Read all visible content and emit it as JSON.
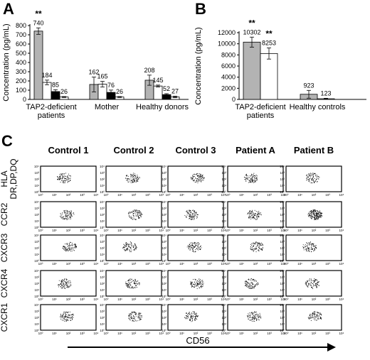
{
  "panel_letters": {
    "a": "A",
    "b": "B",
    "c": "C"
  },
  "chart_data": [
    {
      "panel": "A",
      "type": "bar",
      "ylabel": "Concentration (pg/mL)",
      "ylim": [
        0,
        800
      ],
      "yticks": [
        0,
        100,
        200,
        300,
        400,
        500,
        600,
        700,
        800
      ],
      "categories": [
        [
          "TAP2-deficient",
          "patients"
        ],
        [
          "Mother"
        ],
        [
          "Healthy donors"
        ]
      ],
      "series": [
        {
          "color": "#b3b3b3",
          "values": [
            740,
            162,
            208
          ],
          "errors": [
            35,
            80,
            55
          ]
        },
        {
          "color": "#ffffff",
          "values": [
            184,
            165,
            145
          ],
          "errors": [
            25,
            30,
            10
          ]
        },
        {
          "color": "#000000",
          "values": [
            85,
            76,
            52
          ],
          "errors": [
            20,
            25,
            10
          ]
        },
        {
          "color": "#ffffff",
          "values": [
            26,
            26,
            27
          ],
          "errors": [
            5,
            5,
            8
          ]
        }
      ],
      "annotations": [
        {
          "category": 0,
          "text": "**"
        }
      ]
    },
    {
      "panel": "B",
      "type": "bar",
      "ylabel": "Concentration (pg/mL)",
      "ylim": [
        0,
        12000
      ],
      "yticks": [
        0,
        2000,
        4000,
        6000,
        8000,
        10000,
        12000
      ],
      "categories": [
        [
          "TAP2-deficient",
          "patients"
        ],
        [
          "Healthy controls"
        ]
      ],
      "series": [
        {
          "color": "#b3b3b3",
          "values": [
            10302,
            923
          ],
          "errors": [
            900,
            700
          ]
        },
        {
          "color": "#ffffff",
          "values": [
            8253,
            123
          ],
          "errors": [
            1000,
            80
          ]
        }
      ],
      "annotations": [
        {
          "category": 0,
          "series": 0,
          "text": "**"
        },
        {
          "category": 0,
          "series": 1,
          "text": "**"
        }
      ]
    },
    {
      "panel": "C",
      "type": "scatter",
      "columns": [
        "Control 1",
        "Control 2",
        "Control 3",
        "Patient A",
        "Patient B"
      ],
      "rows": [
        "HLA DR,DP,DQ",
        "CCR2",
        "CXCR3",
        "CXCR4",
        "CXCR1"
      ],
      "xlabel": "CD56",
      "tick_labels": [
        "10⁰",
        "10¹",
        "10²",
        "10³",
        "10⁴"
      ]
    }
  ]
}
